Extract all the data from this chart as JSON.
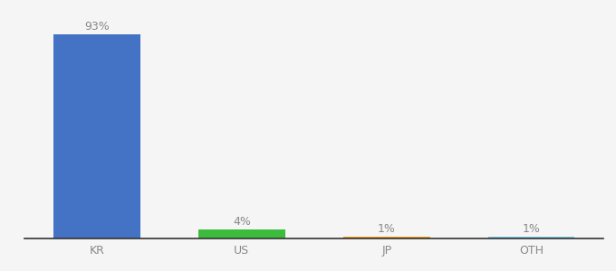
{
  "categories": [
    "KR",
    "US",
    "JP",
    "OTH"
  ],
  "values": [
    93,
    4,
    1,
    1
  ],
  "bar_colors": [
    "#4472c4",
    "#3dbb3d",
    "#e8a020",
    "#7ec8e3"
  ],
  "labels": [
    "93%",
    "4%",
    "1%",
    "1%"
  ],
  "ylim": [
    0,
    100
  ],
  "background_color": "#f5f5f5",
  "label_fontsize": 9,
  "tick_fontsize": 9,
  "bar_width": 0.6,
  "label_color": "#888888",
  "tick_color": "#888888"
}
